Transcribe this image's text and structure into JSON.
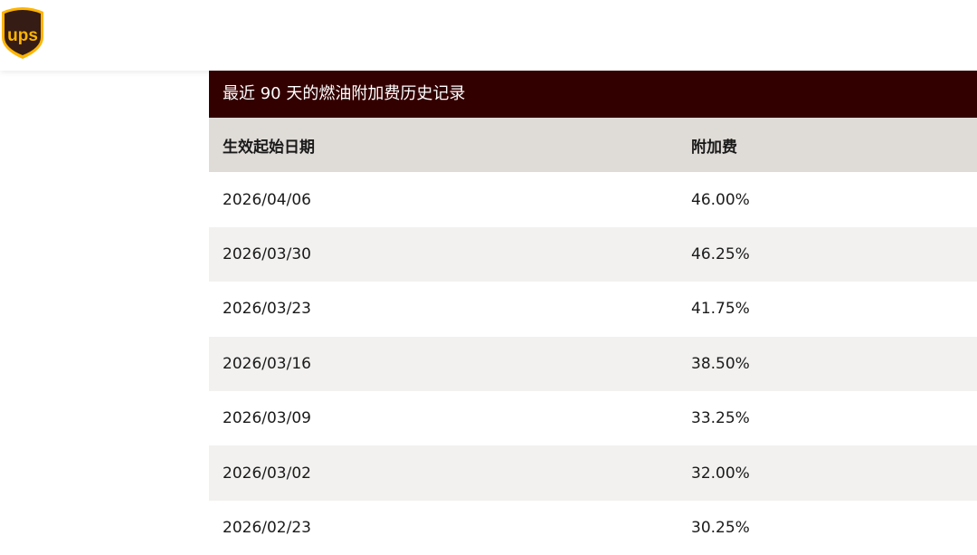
{
  "header": {
    "logo_text": "ups",
    "brand_colors": {
      "brown": "#351c15",
      "gold": "#ffb500"
    }
  },
  "table": {
    "caption": "最近 90 天的燃油附加费历史记录",
    "columns": [
      "生效起始日期",
      "附加费"
    ],
    "rows": [
      [
        "2026/04/06",
        "46.00%"
      ],
      [
        "2026/03/30",
        "46.25%"
      ],
      [
        "2026/03/23",
        "41.75%"
      ],
      [
        "2026/03/16",
        "38.50%"
      ],
      [
        "2026/03/09",
        "33.25%"
      ],
      [
        "2026/03/02",
        "32.00%"
      ],
      [
        "2026/02/23",
        "30.25%"
      ]
    ]
  }
}
